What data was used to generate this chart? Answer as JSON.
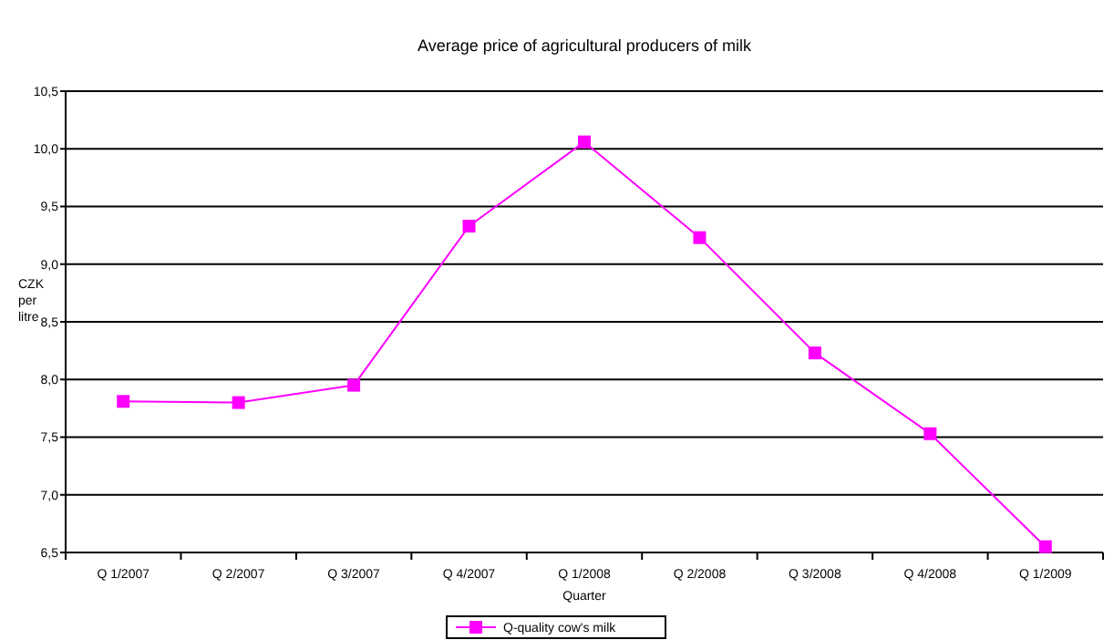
{
  "chart_data": {
    "type": "line",
    "title": "Average price of agricultural producers of milk",
    "xlabel": "Quarter",
    "ylabel": "CZK per litre",
    "categories": [
      "Q 1/2007",
      "Q 2/2007",
      "Q 3/2007",
      "Q 4/2007",
      "Q 1/2008",
      "Q 2/2008",
      "Q 3/2008",
      "Q 4/2008",
      "Q 1/2009"
    ],
    "series": [
      {
        "name": "Q-quality cow's milk",
        "color": "#ff00ff",
        "values": [
          7.81,
          7.8,
          7.95,
          9.33,
          10.06,
          9.23,
          8.23,
          7.53,
          6.55
        ]
      }
    ],
    "ylim": [
      6.5,
      10.5
    ],
    "yticks": [
      {
        "value": 6.5,
        "label": "6,5"
      },
      {
        "value": 7,
        "label": "7,0"
      },
      {
        "value": 7.5,
        "label": "7,5"
      },
      {
        "value": 8,
        "label": "8,0"
      },
      {
        "value": 8.5,
        "label": "8,5"
      },
      {
        "value": 9,
        "label": "9,0"
      },
      {
        "value": 9.5,
        "label": "9,5"
      },
      {
        "value": 10,
        "label": "10,0"
      },
      {
        "value": 10.5,
        "label": "10,5"
      }
    ],
    "grid": "y",
    "legend": "bottom",
    "marker": "square",
    "line_style": "solid"
  }
}
